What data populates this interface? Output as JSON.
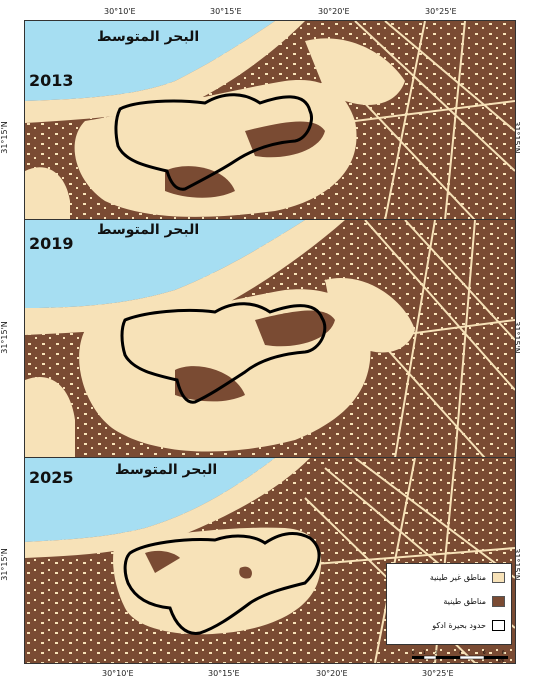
{
  "map": {
    "top_longitudes": [
      "30°10'E",
      "30°15'E",
      "30°20'E",
      "30°25'E"
    ],
    "bottom_longitudes": [
      "30°10'E",
      "30°15'E",
      "30°20'E",
      "30°25'E"
    ],
    "latitude_label": "31°15'N",
    "colors": {
      "sea": "#a6def2",
      "non_clay": "#f7e2b8",
      "clay": "#7a4b33",
      "boundary": "#000000"
    },
    "panels": [
      {
        "year": "2013",
        "sea_label": "البحر المتوسط"
      },
      {
        "year": "2019",
        "sea_label": "البحر المتوسط"
      },
      {
        "year": "2025",
        "sea_label": "البحر المتوسط"
      }
    ]
  },
  "legend": {
    "non_clay_label": "مناطق غير طينية",
    "clay_label": "مناطق طينية",
    "boundary_label": "حدود بحيرة ادكو"
  },
  "scale": {
    "ticks": [
      "0",
      "1",
      "2",
      "4",
      "6",
      "8"
    ],
    "unit": "km"
  }
}
